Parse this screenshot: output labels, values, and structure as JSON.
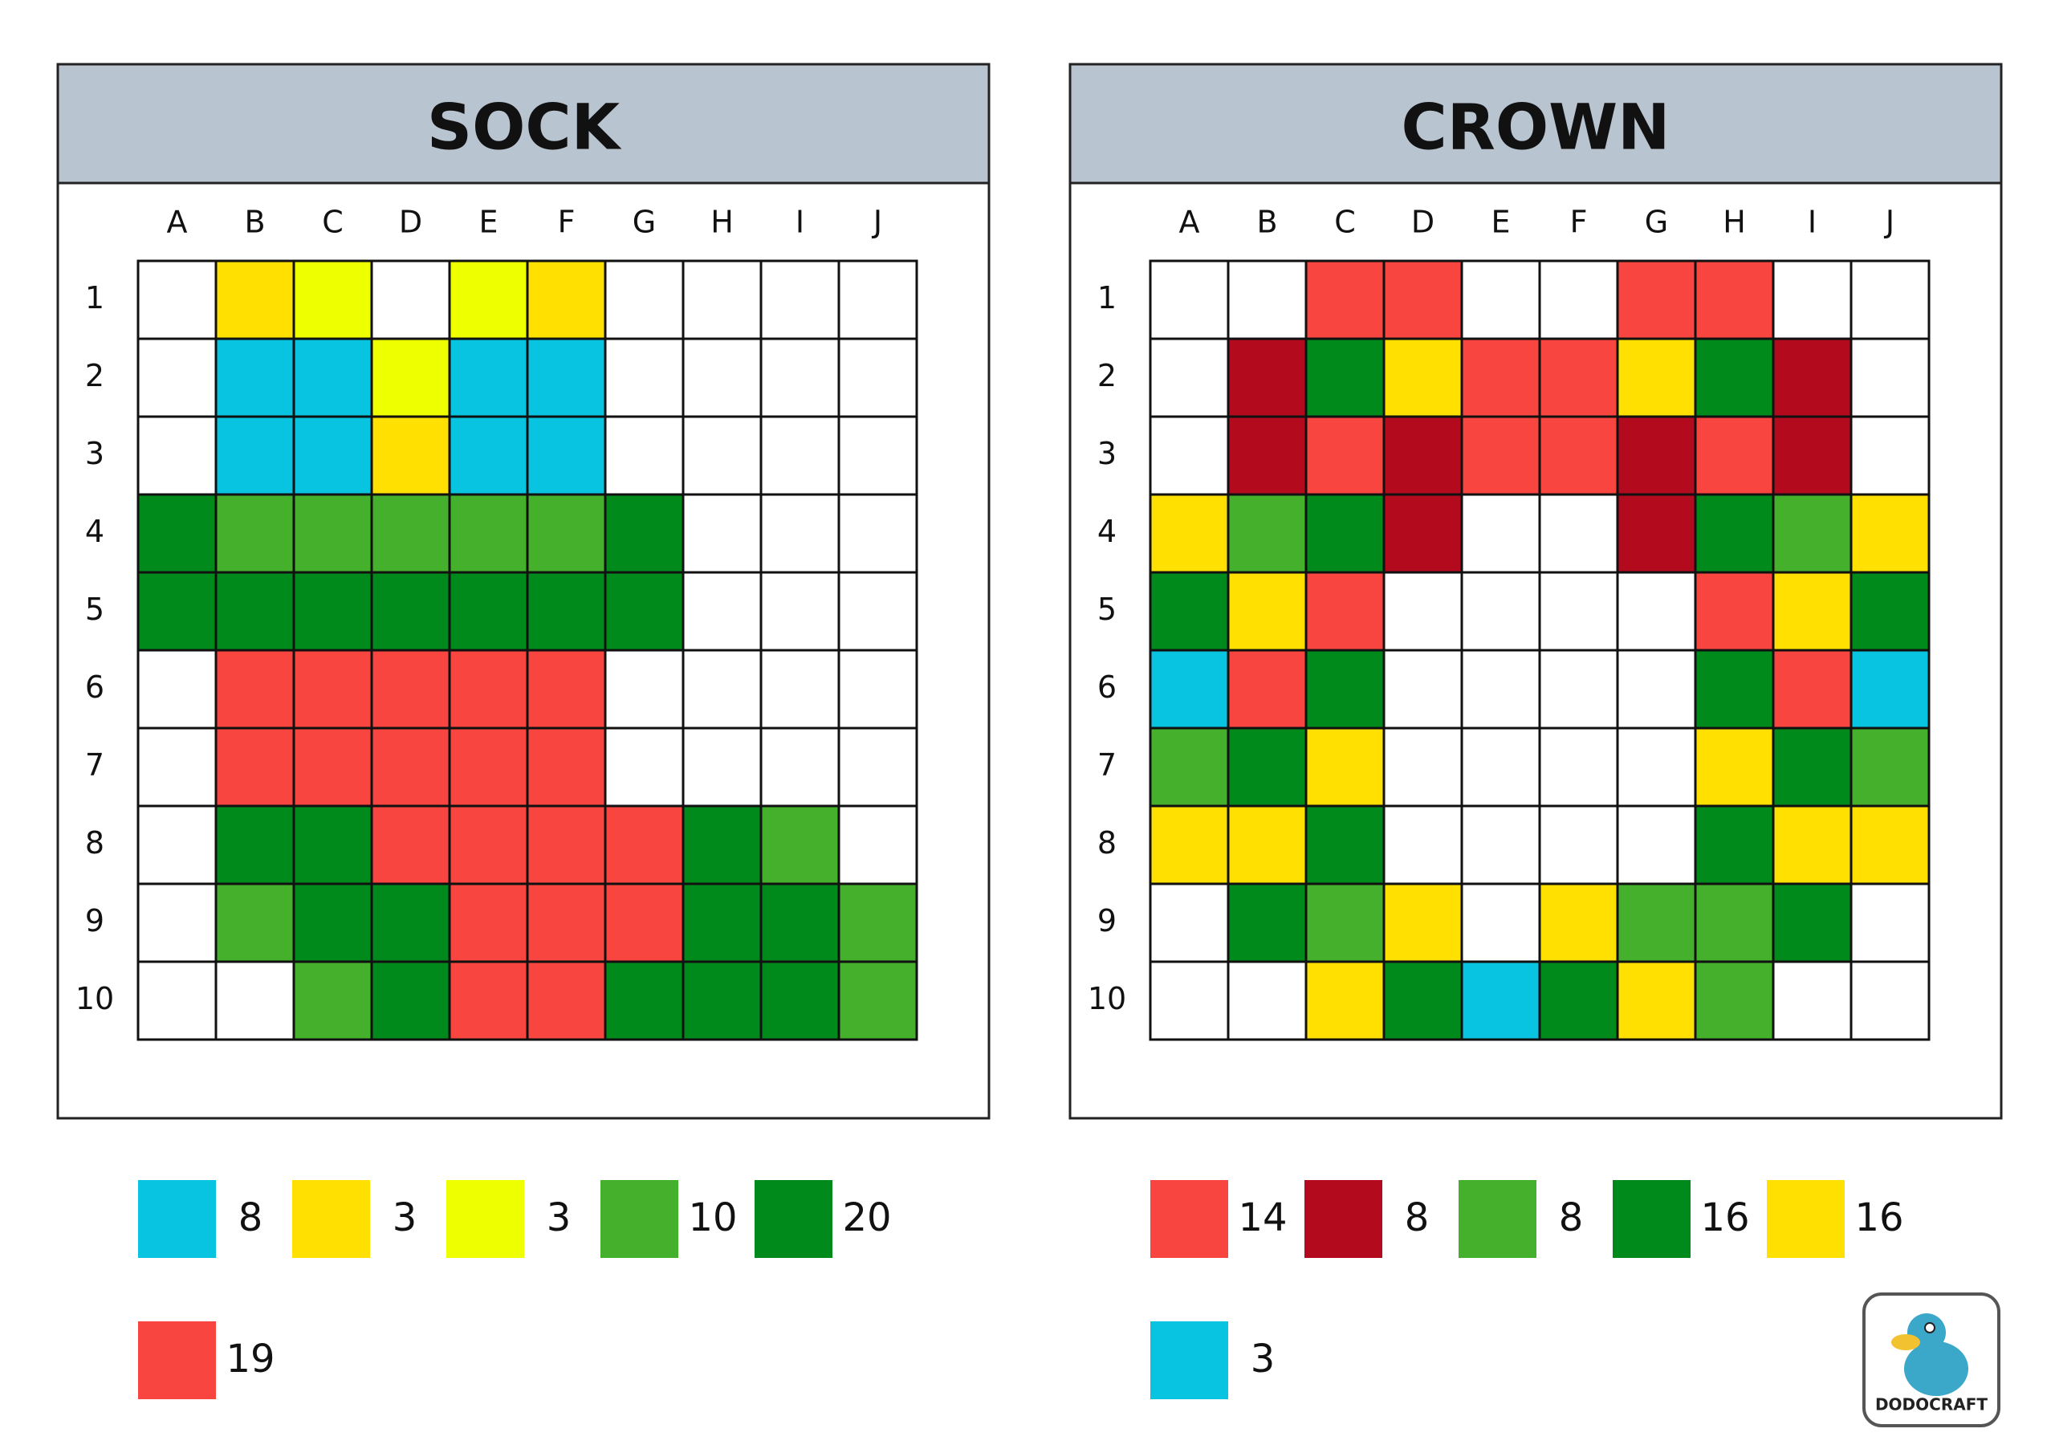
{
  "puzzles": [
    {
      "title": "SOCK",
      "columns": [
        "A",
        "B",
        "C",
        "D",
        "E",
        "F",
        "G",
        "H",
        "I",
        "J"
      ],
      "rows": [
        1,
        2,
        3,
        4,
        5,
        6,
        7,
        8,
        9,
        10
      ],
      "grid": [
        [
          "#ffffff",
          "#ffe000",
          "#eeff00",
          "#ffffff",
          "#eeff00",
          "#ffe000",
          "#ffffff",
          "#ffffff",
          "#ffffff",
          "#ffffff"
        ],
        [
          "#ffffff",
          "#08c4e0",
          "#08c4e0",
          "#eeff00",
          "#08c4e0",
          "#08c4e0",
          "#ffffff",
          "#ffffff",
          "#ffffff",
          "#ffffff"
        ],
        [
          "#ffffff",
          "#08c4e0",
          "#08c4e0",
          "#ffe000",
          "#08c4e0",
          "#08c4e0",
          "#ffffff",
          "#ffffff",
          "#ffffff",
          "#ffffff"
        ],
        [
          "#008a1c",
          "#45b02c",
          "#45b02c",
          "#45b02c",
          "#45b02c",
          "#45b02c",
          "#008a1c",
          "#ffffff",
          "#ffffff",
          "#ffffff"
        ],
        [
          "#008a1c",
          "#008a1c",
          "#008a1c",
          "#008a1c",
          "#008a1c",
          "#008a1c",
          "#008a1c",
          "#ffffff",
          "#ffffff",
          "#ffffff"
        ],
        [
          "#ffffff",
          "#f8453f",
          "#f8453f",
          "#f8453f",
          "#f8453f",
          "#f8453f",
          "#ffffff",
          "#ffffff",
          "#ffffff",
          "#ffffff"
        ],
        [
          "#ffffff",
          "#f8453f",
          "#f8453f",
          "#f8453f",
          "#f8453f",
          "#f8453f",
          "#ffffff",
          "#ffffff",
          "#ffffff",
          "#ffffff"
        ],
        [
          "#ffffff",
          "#008a1c",
          "#008a1c",
          "#f8453f",
          "#f8453f",
          "#f8453f",
          "#f8453f",
          "#008a1c",
          "#45b02c",
          "#ffffff"
        ],
        [
          "#ffffff",
          "#45b02c",
          "#008a1c",
          "#008a1c",
          "#f8453f",
          "#f8453f",
          "#f8453f",
          "#008a1c",
          "#008a1c",
          "#45b02c"
        ],
        [
          "#ffffff",
          "#ffffff",
          "#45b02c",
          "#008a1c",
          "#f8453f",
          "#f8453f",
          "#008a1c",
          "#008a1c",
          "#008a1c",
          "#45b02c"
        ]
      ],
      "legend": [
        {
          "color": "#08c4e0",
          "count": 8
        },
        {
          "color": "#ffe000",
          "count": 3
        },
        {
          "color": "#eeff00",
          "count": 3
        },
        {
          "color": "#45b02c",
          "count": 10
        },
        {
          "color": "#008a1c",
          "count": 20
        },
        {
          "color": "#f8453f",
          "count": 19
        }
      ]
    },
    {
      "title": "CROWN",
      "columns": [
        "A",
        "B",
        "C",
        "D",
        "E",
        "F",
        "G",
        "H",
        "I",
        "J"
      ],
      "rows": [
        1,
        2,
        3,
        4,
        5,
        6,
        7,
        8,
        9,
        10
      ],
      "grid": [
        [
          "#ffffff",
          "#ffffff",
          "#f8453f",
          "#f8453f",
          "#ffffff",
          "#ffffff",
          "#f8453f",
          "#f8453f",
          "#ffffff",
          "#ffffff"
        ],
        [
          "#ffffff",
          "#b30a1e",
          "#008a1c",
          "#ffe000",
          "#f8453f",
          "#f8453f",
          "#ffe000",
          "#008a1c",
          "#b30a1e",
          "#ffffff"
        ],
        [
          "#ffffff",
          "#b30a1e",
          "#f8453f",
          "#b30a1e",
          "#f8453f",
          "#f8453f",
          "#b30a1e",
          "#f8453f",
          "#b30a1e",
          "#ffffff"
        ],
        [
          "#ffe000",
          "#45b02c",
          "#008a1c",
          "#b30a1e",
          "#ffffff",
          "#ffffff",
          "#b30a1e",
          "#008a1c",
          "#45b02c",
          "#ffe000"
        ],
        [
          "#008a1c",
          "#ffe000",
          "#f8453f",
          "#ffffff",
          "#ffffff",
          "#ffffff",
          "#ffffff",
          "#f8453f",
          "#ffe000",
          "#008a1c"
        ],
        [
          "#08c4e0",
          "#f8453f",
          "#008a1c",
          "#ffffff",
          "#ffffff",
          "#ffffff",
          "#ffffff",
          "#008a1c",
          "#f8453f",
          "#08c4e0"
        ],
        [
          "#45b02c",
          "#008a1c",
          "#ffe000",
          "#ffffff",
          "#ffffff",
          "#ffffff",
          "#ffffff",
          "#ffe000",
          "#008a1c",
          "#45b02c"
        ],
        [
          "#ffe000",
          "#ffe000",
          "#008a1c",
          "#ffffff",
          "#ffffff",
          "#ffffff",
          "#ffffff",
          "#008a1c",
          "#ffe000",
          "#ffe000"
        ],
        [
          "#ffffff",
          "#008a1c",
          "#45b02c",
          "#ffe000",
          "#ffffff",
          "#ffe000",
          "#45b02c",
          "#45b02c",
          "#008a1c",
          "#ffffff"
        ],
        [
          "#ffffff",
          "#ffffff",
          "#ffe000",
          "#008a1c",
          "#08c4e0",
          "#008a1c",
          "#ffe000",
          "#45b02c",
          "#ffffff",
          "#ffffff"
        ]
      ],
      "legend": [
        {
          "color": "#f8453f",
          "count": 14
        },
        {
          "color": "#b30a1e",
          "count": 8
        },
        {
          "color": "#45b02c",
          "count": 8
        },
        {
          "color": "#008a1c",
          "count": 16
        },
        {
          "color": "#ffe000",
          "count": 16
        },
        {
          "color": "#08c4e0",
          "count": 3
        }
      ]
    }
  ],
  "logo": "DODOCRAFT"
}
